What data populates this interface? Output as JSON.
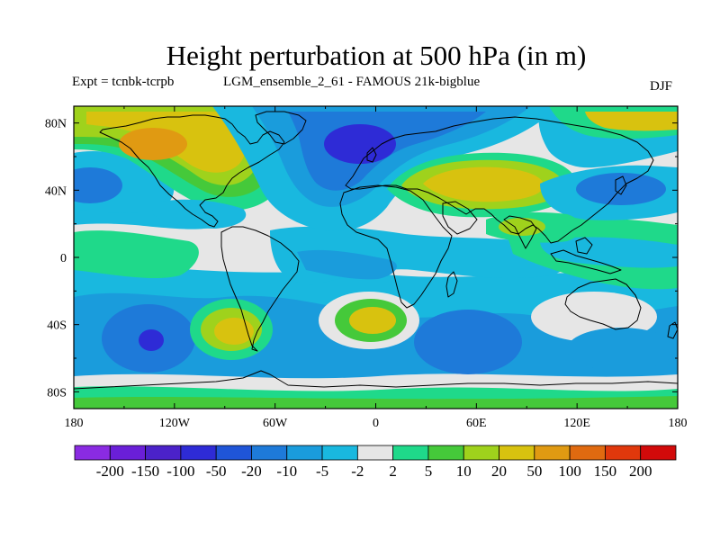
{
  "title": "Height perturbation at 500 hPa (in m)",
  "subtitle_left": "Expt = tcnbk-tcrpb",
  "subtitle_center": "LGM_ensemble_2_61 - FAMOUS 21k-bigblue",
  "subtitle_right": "DJF",
  "axes": {
    "x_ticks": [
      "180",
      "120W",
      "60W",
      "0",
      "60E",
      "120E",
      "180"
    ],
    "y_ticks": [
      "80N",
      "40N",
      "0",
      "40S",
      "80S"
    ]
  },
  "colorbar": {
    "labels": [
      "-200",
      "-150",
      "-100",
      "-50",
      "-20",
      "-10",
      "-5",
      "-2",
      "2",
      "5",
      "10",
      "20",
      "50",
      "100",
      "150",
      "200"
    ],
    "colors": [
      "#8a2be2",
      "#6a1fd8",
      "#4b22c9",
      "#2e2bd6",
      "#1f55d8",
      "#1e7ad9",
      "#1a9cdc",
      "#19b8df",
      "#e6e6e6",
      "#1fd98a",
      "#45c93a",
      "#9fd21c",
      "#d8c20f",
      "#e09a12",
      "#e06a10",
      "#e0380c",
      "#d20a0a"
    ]
  },
  "field_colors": {
    "neutral": "#e6e6e6",
    "neg_light": "#19b8df",
    "neg_mid": "#1a9cdc",
    "neg_strong": "#1e7ad9",
    "neg_deep": "#2e2bd6",
    "pos_light": "#1fd98a",
    "pos_mid": "#45c93a",
    "pos_strong": "#9fd21c",
    "pos_deep": "#d8c20f",
    "pos_peak": "#e09a12"
  }
}
